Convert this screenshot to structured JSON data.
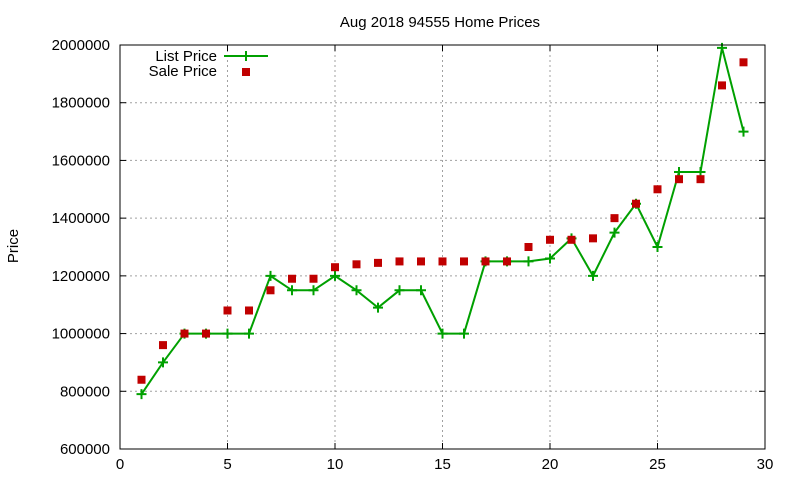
{
  "chart_data": {
    "type": "line",
    "title": "Aug 2018 94555 Home Prices",
    "xlabel": "",
    "ylabel": "Price",
    "xlim": [
      0,
      30
    ],
    "ylim": [
      600000,
      2000000
    ],
    "x_ticks": [
      0,
      5,
      10,
      15,
      20,
      25,
      30
    ],
    "x_tick_labels": [
      "0",
      "5",
      "10",
      "15",
      "20",
      "25",
      "30"
    ],
    "y_ticks": [
      600000,
      800000,
      1000000,
      1200000,
      1400000,
      1600000,
      1800000,
      2000000
    ],
    "y_tick_labels": [
      "600000",
      "800000",
      "1000000",
      "1200000",
      "1400000",
      "1600000",
      "1800000",
      "2000000"
    ],
    "grid": true,
    "legend_position": "top-left",
    "x": [
      1,
      2,
      3,
      4,
      5,
      6,
      7,
      8,
      9,
      10,
      11,
      12,
      13,
      14,
      15,
      16,
      17,
      18,
      19,
      20,
      21,
      22,
      23,
      24,
      25,
      26,
      27,
      28,
      29
    ],
    "series": [
      {
        "name": "List Price",
        "style": "line-plus",
        "color": "#00a000",
        "values": [
          790000,
          900000,
          1000000,
          1000000,
          1000000,
          1000000,
          1200000,
          1150000,
          1150000,
          1200000,
          1150000,
          1090000,
          1150000,
          1150000,
          1000000,
          1000000,
          1250000,
          1250000,
          1250000,
          1260000,
          1330000,
          1200000,
          1350000,
          1450000,
          1300000,
          1560000,
          1560000,
          1990000,
          1700000
        ]
      },
      {
        "name": "Sale Price",
        "style": "square-markers",
        "color": "#c00000",
        "values": [
          840000,
          960000,
          1000000,
          1000000,
          1080000,
          1080000,
          1150000,
          1190000,
          1190000,
          1230000,
          1240000,
          1245000,
          1250000,
          1250000,
          1250000,
          1250000,
          1250000,
          1250000,
          1300000,
          1325000,
          1325000,
          1330000,
          1400000,
          1450000,
          1500000,
          1535000,
          1535000,
          1860000,
          1940000
        ]
      }
    ]
  }
}
